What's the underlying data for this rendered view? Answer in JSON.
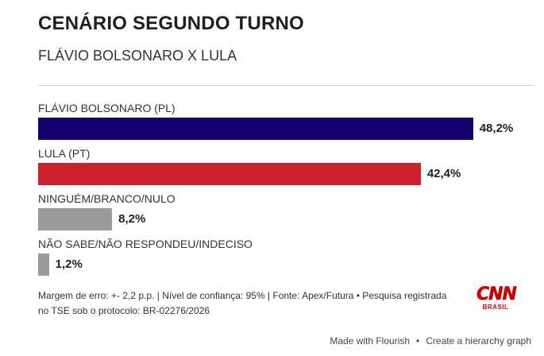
{
  "header": {
    "title": "CENÁRIO SEGUNDO TURNO",
    "subtitle": "FLÁVIO BOLSONARO X LULA"
  },
  "chart_data": {
    "type": "bar",
    "orientation": "horizontal",
    "categories": [
      "FLÁVIO BOLSONARO (PL)",
      "LULA (PT)",
      "NINGUÉM/BRANCO/NULO",
      "NÃO SABE/NÃO RESPONDEU/INDECISO"
    ],
    "values": [
      48.2,
      42.4,
      8.2,
      1.2
    ],
    "value_labels": [
      "48,2%",
      "42,4%",
      "8,2%",
      "1,2%"
    ],
    "colors": [
      "#14006e",
      "#cc1f2b",
      "#9b9b9b",
      "#9b9b9b"
    ],
    "xlim": [
      0,
      55
    ],
    "title": "CENÁRIO SEGUNDO TURNO",
    "subtitle": "FLÁVIO BOLSONARO X LULA",
    "grid": false,
    "legend": "none"
  },
  "footer": {
    "note_line1": "Margem de erro: +- 2,2 p.p. | Nível de confiança: 95% | Fonte: Apex/Futura • Pesquisa registrada",
    "note_line2": "no TSE sob o protocolo: BR-02276/2026",
    "logo_text": "CNN",
    "logo_sub": "BRASIL",
    "made_with": "Made with Flourish",
    "separator": "•",
    "create_link": "Create a hierarchy graph"
  }
}
